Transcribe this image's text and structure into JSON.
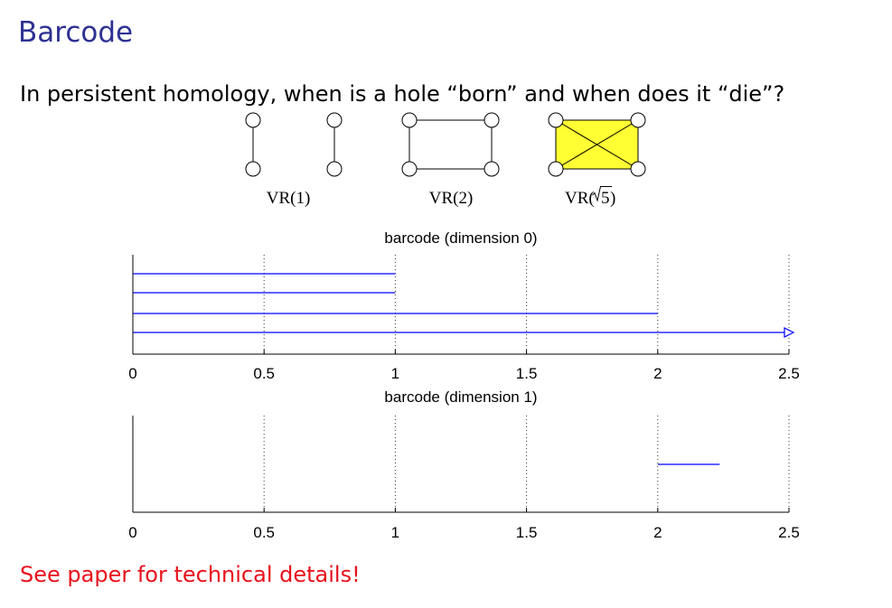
{
  "slide": {
    "title": "Barcode",
    "question": "In persistent homology, when is a hole “born” and when does it “die”?",
    "footer": "See paper for technical details!"
  },
  "complexes": [
    {
      "label": "VR(1)"
    },
    {
      "label": "VR(2)"
    },
    {
      "label_prefix": "VR(",
      "label_radicand": "5",
      "label_suffix": ")",
      "fill_color": "#ffff33"
    }
  ],
  "colors": {
    "title": "#2e3192",
    "footer": "#e8111c",
    "bars": "#0000ff"
  },
  "chart_data": [
    {
      "type": "bar",
      "orientation": "horizontal-intervals",
      "title": "barcode (dimension 0)",
      "xlim": [
        0,
        2.5
      ],
      "xticks": [
        "0",
        "0.5",
        "1",
        "1.5",
        "2",
        "2.5"
      ],
      "grid": "dotted vertical",
      "intervals": [
        {
          "birth": 0,
          "death": 1
        },
        {
          "birth": 0,
          "death": 1
        },
        {
          "birth": 0,
          "death": 2
        },
        {
          "birth": 0,
          "death": "infinity"
        }
      ]
    },
    {
      "type": "bar",
      "orientation": "horizontal-intervals",
      "title": "barcode (dimension 1)",
      "xlim": [
        0,
        2.5
      ],
      "xticks": [
        "0",
        "0.5",
        "1",
        "1.5",
        "2",
        "2.5"
      ],
      "grid": "dotted vertical",
      "intervals": [
        {
          "birth": 2,
          "death": 2.236
        }
      ]
    }
  ]
}
